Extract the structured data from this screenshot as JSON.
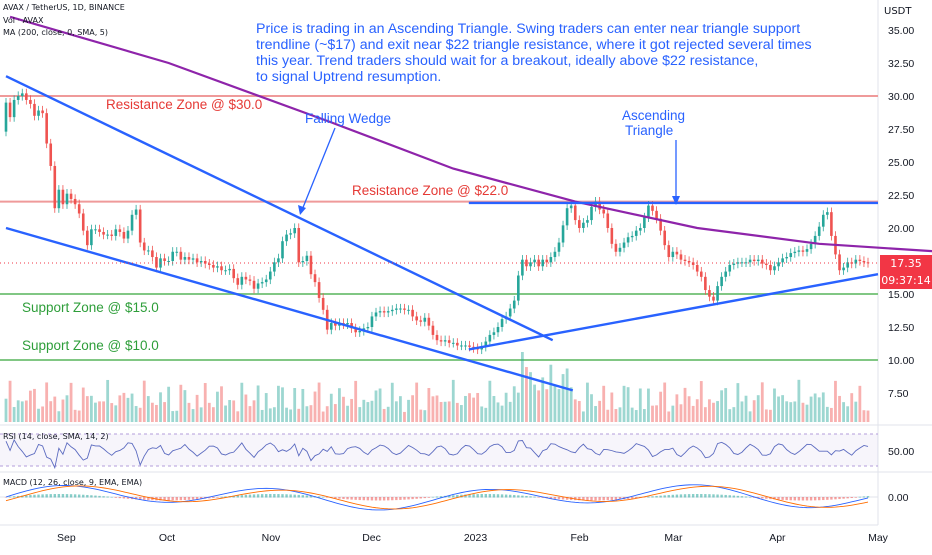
{
  "header": {
    "symbol_line": "AVAX / TetherUS, 1D, BINANCE",
    "volume_line": "Vol · AVAX",
    "ma_line": "MA (200, close, 0, SMA, 5)",
    "rsi_line": "RSI (14, close, SMA, 14, 2)",
    "macd_line": "MACD (12, 26, close, 9, EMA, EMA)",
    "currency": "USDT"
  },
  "callout_lines": [
    "Price is trading in an Ascending Triangle. Swing traders can enter near triangle support",
    "trendline (~$17) and exit near $22 triangle resistance,  where it got rejected several times",
    "this year. Trend traders should wait for a breakout, ideally above $22 resistance,",
    "to signal Uptrend resumption."
  ],
  "annotations": {
    "resistance_30": "Resistance Zone @ $30.0",
    "resistance_22": "Resistance Zone @ $22.0",
    "support_15": "Support Zone @ $15.0",
    "support_10": "Support Zone @ $10.0",
    "falling_wedge": "Falling Wedge",
    "ascending_triangle_1": "Ascending",
    "ascending_triangle_2": "Triangle"
  },
  "price_box": {
    "price": "17.35",
    "countdown": "09:37:14"
  },
  "colors": {
    "up": "#26a69a",
    "down": "#ef5350",
    "ma": "#8e24aa",
    "trend": "#2962ff",
    "resistance": "#ef9a9a",
    "support": "#81c784",
    "rsi": "#5c6bc0",
    "macd": "#2962ff",
    "signal": "#ff6d00"
  },
  "chart_data": {
    "type": "candlestick",
    "x_ticks": [
      "Sep",
      "Oct",
      "Nov",
      "Dec",
      "2023",
      "Feb",
      "Mar",
      "Apr",
      "May"
    ],
    "y_ticks": [
      "35.00",
      "32.50",
      "30.00",
      "27.50",
      "25.00",
      "22.50",
      "20.00",
      "17.50",
      "15.00",
      "12.50",
      "10.00",
      "7.50"
    ],
    "rsi_ticks": [
      "50.00"
    ],
    "macd_ticks": [
      "0.00"
    ],
    "horizontal_levels": [
      {
        "name": "Resistance Zone @ $30.0",
        "value": 30.0,
        "kind": "resistance"
      },
      {
        "name": "Resistance Zone @ $22.0",
        "value": 22.0,
        "kind": "resistance"
      },
      {
        "name": "Support Zone @ $15.0",
        "value": 15.0,
        "kind": "support"
      },
      {
        "name": "Support Zone @ $10.0",
        "value": 10.0,
        "kind": "support"
      }
    ],
    "trendlines": [
      {
        "name": "wedge-upper",
        "from": [
          "Aug 14",
          31.5
        ],
        "to": [
          "Jan 24",
          11.5
        ]
      },
      {
        "name": "wedge-lower",
        "from": [
          "Aug 14",
          20.0
        ],
        "to": [
          "Jan 30",
          7.7
        ]
      },
      {
        "name": "triangle-support",
        "from": [
          "Dec 30",
          10.8
        ],
        "to": [
          "May 1",
          16.5
        ]
      },
      {
        "name": "triangle-resistance",
        "from": [
          "Dec 30",
          21.9
        ],
        "to": [
          "May 1",
          21.9
        ]
      }
    ],
    "candles": [
      [
        27.3,
        29.5
      ],
      [
        29.5,
        28.4
      ],
      [
        28.4,
        29.7
      ],
      [
        29.7,
        30.0
      ],
      [
        30.0,
        30.2
      ],
      [
        30.2,
        29.7
      ],
      [
        29.7,
        29.4
      ],
      [
        29.4,
        28.5
      ],
      [
        28.5,
        28.9
      ],
      [
        28.9,
        28.7
      ],
      [
        28.7,
        26.4
      ],
      [
        26.4,
        24.7
      ],
      [
        24.7,
        21.5
      ],
      [
        21.5,
        22.9
      ],
      [
        22.9,
        21.8
      ],
      [
        21.8,
        22.6
      ],
      [
        22.6,
        22.2
      ],
      [
        22.2,
        21.8
      ],
      [
        21.8,
        21.1
      ],
      [
        21.1,
        19.8
      ],
      [
        19.8,
        18.7
      ],
      [
        18.7,
        19.9
      ],
      [
        19.9,
        19.9
      ],
      [
        19.9,
        19.7
      ],
      [
        19.7,
        19.5
      ],
      [
        19.5,
        19.5
      ],
      [
        19.5,
        19.4
      ],
      [
        19.4,
        19.9
      ],
      [
        19.9,
        19.7
      ],
      [
        19.7,
        19.2
      ],
      [
        19.2,
        19.8
      ],
      [
        19.8,
        21.0
      ],
      [
        21.0,
        21.4
      ],
      [
        21.4,
        18.9
      ],
      [
        18.9,
        18.3
      ],
      [
        18.3,
        18.3
      ],
      [
        18.3,
        17.8
      ],
      [
        17.8,
        17.0
      ],
      [
        17.0,
        17.7
      ],
      [
        17.7,
        17.5
      ],
      [
        17.5,
        17.5
      ],
      [
        17.5,
        18.2
      ],
      [
        18.2,
        18.2
      ],
      [
        18.2,
        17.6
      ],
      [
        17.6,
        17.8
      ],
      [
        17.8,
        17.6
      ],
      [
        17.6,
        17.7
      ],
      [
        17.7,
        17.4
      ],
      [
        17.4,
        17.5
      ],
      [
        17.5,
        17.3
      ],
      [
        17.3,
        17.2
      ],
      [
        17.2,
        17.0
      ],
      [
        17.0,
        17.1
      ],
      [
        17.1,
        16.8
      ],
      [
        16.8,
        16.8
      ],
      [
        16.8,
        16.9
      ],
      [
        16.9,
        16.2
      ],
      [
        16.2,
        15.7
      ],
      [
        15.7,
        16.3
      ],
      [
        16.3,
        16.1
      ],
      [
        16.1,
        16.0
      ],
      [
        16.0,
        15.4
      ],
      [
        15.4,
        15.8
      ],
      [
        15.8,
        15.9
      ],
      [
        15.9,
        16.1
      ],
      [
        16.1,
        16.7
      ],
      [
        16.7,
        17.4
      ],
      [
        17.4,
        17.7
      ],
      [
        17.7,
        19.0
      ],
      [
        19.0,
        19.5
      ],
      [
        19.5,
        19.6
      ],
      [
        19.6,
        20.0
      ],
      [
        20.0,
        17.4
      ],
      [
        17.4,
        17.5
      ],
      [
        17.5,
        17.9
      ],
      [
        17.9,
        16.5
      ],
      [
        16.5,
        15.9
      ],
      [
        15.9,
        14.7
      ],
      [
        14.7,
        13.8
      ],
      [
        13.8,
        12.3
      ],
      [
        12.3,
        12.8
      ],
      [
        12.8,
        12.6
      ],
      [
        12.6,
        12.8
      ],
      [
        12.8,
        12.7
      ],
      [
        12.7,
        12.8
      ],
      [
        12.8,
        12.4
      ],
      [
        12.4,
        12.1
      ],
      [
        12.1,
        12.2
      ],
      [
        12.2,
        12.4
      ],
      [
        12.4,
        12.5
      ],
      [
        12.5,
        13.3
      ],
      [
        13.3,
        13.6
      ],
      [
        13.6,
        13.7
      ],
      [
        13.7,
        13.6
      ],
      [
        13.6,
        13.7
      ],
      [
        13.7,
        13.8
      ],
      [
        13.8,
        13.9
      ],
      [
        13.9,
        13.9
      ],
      [
        13.9,
        13.8
      ],
      [
        13.8,
        13.8
      ],
      [
        13.8,
        13.3
      ],
      [
        13.3,
        13.0
      ],
      [
        13.0,
        12.9
      ],
      [
        12.9,
        13.2
      ],
      [
        13.2,
        12.6
      ],
      [
        12.6,
        11.9
      ],
      [
        11.9,
        11.5
      ],
      [
        11.5,
        11.4
      ],
      [
        11.4,
        11.5
      ],
      [
        11.5,
        11.3
      ],
      [
        11.3,
        11.3
      ],
      [
        11.3,
        11.1
      ],
      [
        11.1,
        11.1
      ],
      [
        11.1,
        11.1
      ],
      [
        11.1,
        11.0
      ],
      [
        11.0,
        10.9
      ],
      [
        10.9,
        10.8
      ],
      [
        10.8,
        11.0
      ],
      [
        11.0,
        11.4
      ],
      [
        11.4,
        11.9
      ],
      [
        11.9,
        12.1
      ],
      [
        12.1,
        12.5
      ],
      [
        12.5,
        13.1
      ],
      [
        13.1,
        13.3
      ],
      [
        13.3,
        13.9
      ],
      [
        13.9,
        14.5
      ],
      [
        14.5,
        16.4
      ],
      [
        16.4,
        17.6
      ],
      [
        17.6,
        17.1
      ],
      [
        17.1,
        17.4
      ],
      [
        17.4,
        17.6
      ],
      [
        17.6,
        17.1
      ],
      [
        17.1,
        17.6
      ],
      [
        17.6,
        17.4
      ],
      [
        17.4,
        17.8
      ],
      [
        17.8,
        18.2
      ],
      [
        18.2,
        18.9
      ],
      [
        18.9,
        20.2
      ],
      [
        20.2,
        21.5
      ],
      [
        21.5,
        21.7
      ],
      [
        21.7,
        20.6
      ],
      [
        20.6,
        20.0
      ],
      [
        20.0,
        20.4
      ],
      [
        20.4,
        20.6
      ],
      [
        20.6,
        21.6
      ],
      [
        21.6,
        22.0
      ],
      [
        22.0,
        21.4
      ],
      [
        21.4,
        21.1
      ],
      [
        21.1,
        20.0
      ],
      [
        20.0,
        18.8
      ],
      [
        18.8,
        18.2
      ],
      [
        18.2,
        18.5
      ],
      [
        18.5,
        18.9
      ],
      [
        18.9,
        19.3
      ],
      [
        19.3,
        19.4
      ],
      [
        19.4,
        19.8
      ],
      [
        19.8,
        20.0
      ],
      [
        20.0,
        20.8
      ],
      [
        20.8,
        21.7
      ],
      [
        21.7,
        21.3
      ],
      [
        21.3,
        20.7
      ],
      [
        20.7,
        19.8
      ],
      [
        19.8,
        18.7
      ],
      [
        18.7,
        17.8
      ],
      [
        17.8,
        18.2
      ],
      [
        18.2,
        18.0
      ],
      [
        18.0,
        17.6
      ],
      [
        17.6,
        17.5
      ],
      [
        17.5,
        17.4
      ],
      [
        17.4,
        17.2
      ],
      [
        17.2,
        16.7
      ],
      [
        16.7,
        16.3
      ],
      [
        16.3,
        15.3
      ],
      [
        15.3,
        14.8
      ],
      [
        14.8,
        14.5
      ],
      [
        14.5,
        15.6
      ],
      [
        15.6,
        16.3
      ],
      [
        16.3,
        16.7
      ],
      [
        16.7,
        17.2
      ],
      [
        17.2,
        17.3
      ],
      [
        17.3,
        17.4
      ],
      [
        17.4,
        17.4
      ],
      [
        17.4,
        17.4
      ],
      [
        17.4,
        17.6
      ],
      [
        17.6,
        17.5
      ],
      [
        17.5,
        17.6
      ],
      [
        17.6,
        17.3
      ],
      [
        17.3,
        17.2
      ],
      [
        17.2,
        16.8
      ],
      [
        16.8,
        17.1
      ],
      [
        17.1,
        17.4
      ],
      [
        17.4,
        17.7
      ],
      [
        17.7,
        17.8
      ],
      [
        17.8,
        18.1
      ],
      [
        18.1,
        18.2
      ],
      [
        18.2,
        18.3
      ],
      [
        18.3,
        18.2
      ],
      [
        18.2,
        18.4
      ],
      [
        18.4,
        18.8
      ],
      [
        18.8,
        19.4
      ],
      [
        19.4,
        20.1
      ],
      [
        20.1,
        21.0
      ],
      [
        21.0,
        21.2
      ],
      [
        21.2,
        19.4
      ],
      [
        19.4,
        18.0
      ],
      [
        18.0,
        16.8
      ],
      [
        16.8,
        17.0
      ],
      [
        17.0,
        17.4
      ],
      [
        17.4,
        17.3
      ],
      [
        17.3,
        17.6
      ],
      [
        17.6,
        17.5
      ],
      [
        17.5,
        17.4
      ],
      [
        17.4,
        17.35
      ]
    ],
    "ma200": [
      [
        1,
        36.0
      ],
      [
        40,
        32.5
      ],
      [
        80,
        28.0
      ],
      [
        110,
        24.5
      ],
      [
        140,
        22.0
      ],
      [
        170,
        20.0
      ],
      [
        200,
        18.8
      ],
      [
        230,
        18.2
      ],
      [
        260,
        17.8
      ],
      [
        290,
        17.5
      ],
      [
        330,
        17.3
      ],
      [
        370,
        17.25
      ],
      [
        410,
        17.2
      ],
      [
        450,
        17.4
      ],
      [
        480,
        17.5
      ],
      [
        510,
        17.4
      ],
      [
        540,
        17.6
      ],
      [
        570,
        17.9
      ],
      [
        600,
        17.6
      ],
      [
        640,
        17.3
      ],
      [
        680,
        17.0
      ],
      [
        710,
        16.6
      ],
      [
        740,
        16.45
      ],
      [
        780,
        16.35
      ],
      [
        820,
        16.3
      ],
      [
        850,
        16.3
      ],
      [
        866,
        16.25
      ]
    ]
  }
}
